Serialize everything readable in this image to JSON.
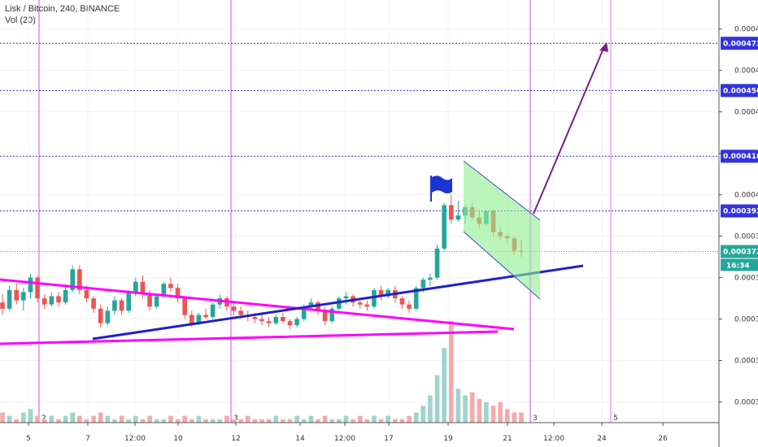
{
  "header": {
    "symbol_line": "Lisk / Bitcoin, 240, BINANCE",
    "indicator_line": "Vol (20)"
  },
  "colors": {
    "up": "#26a69a",
    "down": "#ef5350",
    "vol_up": "#9fd3cc",
    "vol_down": "#f4aaa9",
    "vline": "#e040fb",
    "hline": "#3333dd",
    "support": "#1e22c8",
    "triangle": "#ff00ff",
    "channel_fill": "#90ee90",
    "arrow": "#7a1f8a",
    "flag": "#1b35d6",
    "price_badge": "#26a69a"
  },
  "chart_data": {
    "type": "candlestick",
    "symbol": "Lisk / Bitcoin",
    "interval": "240",
    "exchange": "BINANCE",
    "ylim": [
      0.00029,
      0.000494
    ],
    "y_ticks": [
      "0.0003000",
      "0.0003200",
      "0.0003400",
      "0.0003600",
      "0.0003800",
      "0.0004000",
      "0.0004200",
      "0.0004400",
      "0.0004600",
      "0.0004800"
    ],
    "x_ticks": [
      "5",
      "7",
      "12:00",
      "10",
      "12",
      "14",
      "12:00",
      "17",
      "19",
      "21",
      "12:00",
      "24",
      "26"
    ],
    "horizontal_levels": [
      {
        "value": "0.0004731",
        "style": "dashed"
      },
      {
        "value": "0.0004503",
        "style": "dashed"
      },
      {
        "value": "0.0004186",
        "style": "dashed"
      },
      {
        "value": "0.0003922",
        "style": "dashed"
      }
    ],
    "current_price": {
      "value": "0.0003726",
      "countdown": "16:34"
    },
    "vertical_markers": [
      {
        "label": "2"
      },
      {
        "label": "3"
      },
      {
        "label": "3"
      },
      {
        "label": "5"
      }
    ],
    "candles": [
      [
        0.000348,
        0.000352,
        0.000342,
        0.000345
      ],
      [
        0.000345,
        0.000356,
        0.000344,
        0.000354
      ],
      [
        0.000354,
        0.000357,
        0.000347,
        0.000349
      ],
      [
        0.000349,
        0.000355,
        0.000344,
        0.000353
      ],
      [
        0.000353,
        0.000362,
        0.00035,
        0.00036
      ],
      [
        0.00036,
        0.000361,
        0.000348,
        0.00035
      ],
      [
        0.00035,
        0.000352,
        0.000345,
        0.000347
      ],
      [
        0.000347,
        0.000353,
        0.000346,
        0.000351
      ],
      [
        0.000351,
        0.000353,
        0.000346,
        0.000348
      ],
      [
        0.000348,
        0.000356,
        0.000347,
        0.000354
      ],
      [
        0.000354,
        0.000366,
        0.000353,
        0.000364
      ],
      [
        0.000364,
        0.000366,
        0.000352,
        0.000354
      ],
      [
        0.000354,
        0.000356,
        0.000348,
        0.00035
      ],
      [
        0.00035,
        0.000351,
        0.000343,
        0.000345
      ],
      [
        0.000345,
        0.000347,
        0.000336,
        0.000338
      ],
      [
        0.000338,
        0.000346,
        0.000337,
        0.000344
      ],
      [
        0.000344,
        0.000351,
        0.000342,
        0.000349
      ],
      [
        0.000349,
        0.00035,
        0.000342,
        0.000344
      ],
      [
        0.000344,
        0.000354,
        0.000343,
        0.000353
      ],
      [
        0.000353,
        0.00036,
        0.000351,
        0.000358
      ],
      [
        0.000358,
        0.000361,
        0.00035,
        0.000352
      ],
      [
        0.000352,
        0.000354,
        0.000344,
        0.000346
      ],
      [
        0.000346,
        0.000352,
        0.000345,
        0.000351
      ],
      [
        0.000351,
        0.000358,
        0.00035,
        0.000357
      ],
      [
        0.000357,
        0.00036,
        0.000353,
        0.000355
      ],
      [
        0.000355,
        0.000357,
        0.000348,
        0.00035
      ],
      [
        0.00035,
        0.000351,
        0.00034,
        0.000342
      ],
      [
        0.000342,
        0.000344,
        0.000336,
        0.000338
      ],
      [
        0.000338,
        0.000343,
        0.000337,
        0.000342
      ],
      [
        0.000342,
        0.000345,
        0.00034,
        0.000341
      ],
      [
        0.000341,
        0.000348,
        0.00034,
        0.000347
      ],
      [
        0.000347,
        0.000352,
        0.000345,
        0.00035
      ],
      [
        0.00035,
        0.000351,
        0.000344,
        0.000346
      ],
      [
        0.000346,
        0.000348,
        0.000342,
        0.000344
      ],
      [
        0.000344,
        0.000346,
        0.00034,
        0.000342
      ],
      [
        0.000342,
        0.000344,
        0.000339,
        0.000341
      ],
      [
        0.000341,
        0.000343,
        0.000338,
        0.00034
      ],
      [
        0.00034,
        0.000342,
        0.000337,
        0.000339
      ],
      [
        0.000339,
        0.000341,
        0.000336,
        0.000338
      ],
      [
        0.000338,
        0.000342,
        0.000337,
        0.000341
      ],
      [
        0.000341,
        0.000343,
        0.000338,
        0.000339
      ],
      [
        0.000339,
        0.00034,
        0.000335,
        0.000337
      ],
      [
        0.000337,
        0.000341,
        0.000336,
        0.00034
      ],
      [
        0.00034,
        0.000347,
        0.000339,
        0.000346
      ],
      [
        0.000346,
        0.00035,
        0.000344,
        0.000348
      ],
      [
        0.000348,
        0.000349,
        0.000342,
        0.000344
      ],
      [
        0.000344,
        0.000346,
        0.000337,
        0.000339
      ],
      [
        0.000339,
        0.000346,
        0.000338,
        0.000345
      ],
      [
        0.000345,
        0.000351,
        0.000344,
        0.00035
      ],
      [
        0.00035,
        0.000353,
        0.000347,
        0.000351
      ],
      [
        0.000351,
        0.000352,
        0.000346,
        0.000348
      ],
      [
        0.000348,
        0.00035,
        0.000345,
        0.000347
      ],
      [
        0.000347,
        0.000349,
        0.000344,
        0.000346
      ],
      [
        0.000346,
        0.000355,
        0.000345,
        0.000354
      ],
      [
        0.000354,
        0.000356,
        0.000349,
        0.000351
      ],
      [
        0.000351,
        0.000355,
        0.00035,
        0.000354
      ],
      [
        0.000354,
        0.000356,
        0.000348,
        0.00035
      ],
      [
        0.00035,
        0.000351,
        0.000345,
        0.000347
      ],
      [
        0.000347,
        0.000349,
        0.000343,
        0.000345
      ],
      [
        0.000345,
        0.000356,
        0.000344,
        0.000355
      ],
      [
        0.000355,
        0.00036,
        0.000353,
        0.000359
      ],
      [
        0.000359,
        0.000362,
        0.000356,
        0.00036
      ],
      [
        0.00036,
        0.000376,
        0.000359,
        0.000374
      ],
      [
        0.000374,
        0.000396,
        0.000373,
        0.000395
      ],
      [
        0.000395,
        0.0004,
        0.000386,
        0.000388
      ],
      [
        0.000388,
        0.000397,
        0.000387,
        0.00039
      ],
      [
        0.00039,
        0.000395,
        0.000386,
        0.000394
      ],
      [
        0.000394,
        0.000396,
        0.000388,
        0.000389
      ],
      [
        0.000389,
        0.000392,
        0.000384,
        0.000386
      ],
      [
        0.000386,
        0.000393,
        0.000385,
        0.000392
      ],
      [
        0.000392,
        0.000393,
        0.00038,
        0.000382
      ],
      [
        0.000382,
        0.000384,
        0.000378,
        0.00038
      ],
      [
        0.00038,
        0.000381,
        0.000376,
        0.000379
      ],
      [
        0.000379,
        0.00038,
        0.000371,
        0.000373
      ],
      [
        0.000373,
        0.000378,
        0.00037,
        0.0003726
      ]
    ],
    "volume": [
      3,
      2,
      1,
      3,
      4,
      2,
      1,
      2,
      1,
      2,
      3,
      2,
      1,
      2,
      3,
      2,
      1,
      2,
      1,
      2,
      1,
      2,
      1,
      1,
      2,
      1,
      2,
      1,
      2,
      1,
      1,
      1,
      2,
      1,
      1,
      2,
      1,
      1,
      1,
      2,
      1,
      1,
      2,
      1,
      2,
      1,
      2,
      1,
      1,
      2,
      1,
      2,
      1,
      2,
      1,
      2,
      1,
      1,
      2,
      3,
      5,
      8,
      14,
      22,
      30,
      10,
      8,
      9,
      7,
      6,
      5,
      6,
      4,
      3,
      3
    ],
    "drawings": [
      {
        "type": "trendline",
        "name": "ascending support"
      },
      {
        "type": "trendline",
        "name": "upper triangle line"
      },
      {
        "type": "trendline",
        "name": "lower triangle line"
      },
      {
        "type": "channel",
        "name": "bull flag channel"
      },
      {
        "type": "arrow",
        "name": "projected move",
        "target": "0.0004731"
      }
    ]
  }
}
